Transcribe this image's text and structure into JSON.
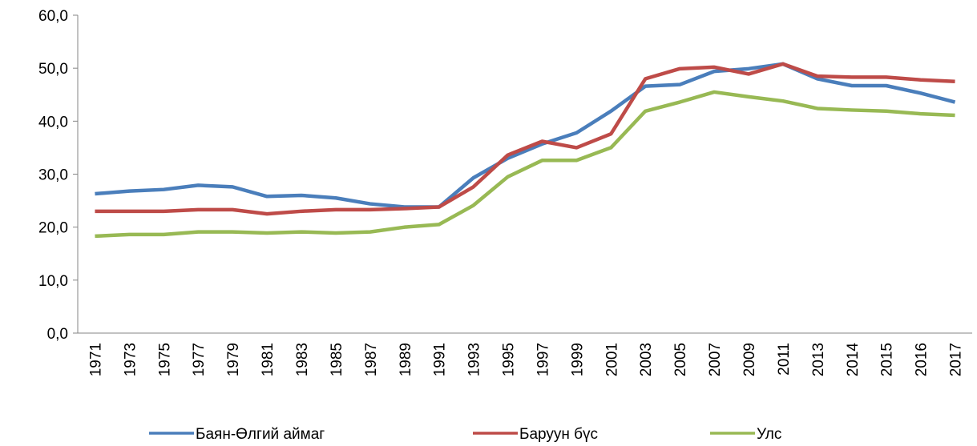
{
  "chart_data": {
    "type": "line",
    "categories": [
      "1971",
      "1973",
      "1975",
      "1977",
      "1979",
      "1981",
      "1983",
      "1985",
      "1987",
      "1989",
      "1991",
      "1993",
      "1995",
      "1997",
      "1999",
      "2001",
      "2003",
      "2005",
      "2007",
      "2009",
      "2011",
      "2013",
      "2014",
      "2015",
      "2016",
      "2017"
    ],
    "series": [
      {
        "name": "Баян-Өлгий аймаг",
        "color": "#4a7ebb",
        "values": [
          26.3,
          26.8,
          27.1,
          27.9,
          27.6,
          25.8,
          26.0,
          25.5,
          24.4,
          23.8,
          23.8,
          29.3,
          33.0,
          35.7,
          37.8,
          41.9,
          46.6,
          46.9,
          49.4,
          49.9,
          50.8,
          48.0,
          46.7,
          46.7,
          45.3,
          43.6
        ]
      },
      {
        "name": "Баруун бүс",
        "color": "#be4b48",
        "values": [
          23.0,
          23.0,
          23.0,
          23.3,
          23.3,
          22.5,
          23.0,
          23.3,
          23.3,
          23.5,
          23.8,
          27.6,
          33.6,
          36.2,
          35.0,
          37.6,
          48.0,
          49.9,
          50.2,
          48.9,
          50.8,
          48.5,
          48.3,
          48.3,
          47.8,
          47.5
        ]
      },
      {
        "name": "Улс",
        "color": "#98b954",
        "values": [
          18.3,
          18.6,
          18.6,
          19.1,
          19.1,
          18.9,
          19.1,
          18.9,
          19.1,
          20.0,
          20.5,
          24.1,
          29.5,
          32.6,
          32.6,
          35.0,
          41.9,
          43.6,
          45.5,
          44.6,
          43.8,
          42.4,
          42.1,
          41.9,
          41.4,
          41.1
        ]
      }
    ],
    "ylim": [
      0,
      60
    ],
    "yticks": [
      {
        "value": 0,
        "label": "0,0"
      },
      {
        "value": 10,
        "label": "10,0"
      },
      {
        "value": 20,
        "label": "20,0"
      },
      {
        "value": 30,
        "label": "30,0"
      },
      {
        "value": 40,
        "label": "40,0"
      },
      {
        "value": 50,
        "label": "50,0"
      },
      {
        "value": 60,
        "label": "60,0"
      }
    ],
    "legend": "bottom",
    "grid": false
  }
}
